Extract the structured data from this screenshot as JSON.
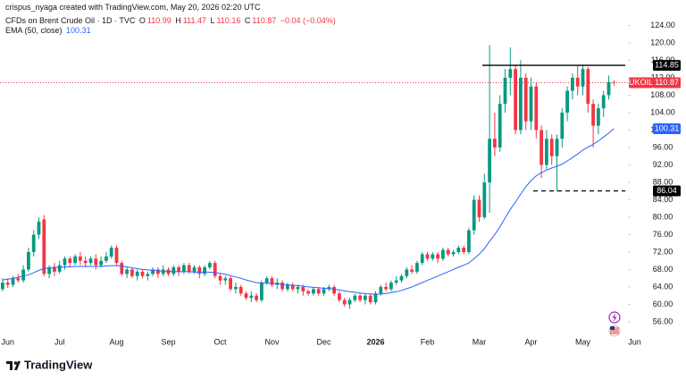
{
  "header": {
    "attribution": "crispus_nyaga created with TradingView.com, May 20, 2026 02:20 UTC",
    "ohlc_letters": [
      "O",
      "H",
      "L",
      "C"
    ],
    "change_label": "−0.04 (−0.04%)",
    "symbol_tag": "UKOIL"
  },
  "footer": {
    "brand": "TradingView"
  },
  "chart_data": {
    "type": "candlestick",
    "categories": [
      null,
      "Jun",
      null,
      null,
      null,
      null,
      null,
      null,
      null,
      null,
      null,
      "Jul",
      null,
      null,
      null,
      null,
      null,
      null,
      null,
      null,
      null,
      null,
      "Aug",
      null,
      null,
      null,
      null,
      null,
      null,
      null,
      null,
      null,
      "Sep",
      null,
      null,
      null,
      null,
      null,
      null,
      null,
      null,
      null,
      "Oct",
      null,
      null,
      null,
      null,
      null,
      null,
      null,
      null,
      null,
      "Nov",
      null,
      null,
      null,
      null,
      null,
      null,
      null,
      null,
      null,
      "Dec",
      null,
      null,
      null,
      null,
      null,
      null,
      null,
      null,
      null,
      "2026",
      null,
      null,
      null,
      null,
      null,
      null,
      null,
      null,
      null,
      "Feb",
      null,
      null,
      null,
      null,
      null,
      null,
      null,
      null,
      null,
      "Mar",
      null,
      null,
      null,
      null,
      null,
      null,
      null,
      null,
      null,
      "Apr",
      null,
      null,
      null,
      null,
      null,
      null,
      null,
      null,
      null,
      "May",
      null,
      null,
      null,
      null,
      null,
      null,
      null,
      null,
      null,
      "Jun"
    ],
    "ylim": [
      52.5,
      127.5
    ],
    "yticks": [
      {
        "value": 56,
        "label": "56.00"
      },
      {
        "value": 60,
        "label": "60.00"
      },
      {
        "value": 64,
        "label": "64.00"
      },
      {
        "value": 68,
        "label": "68.00"
      },
      {
        "value": 72,
        "label": "72.00"
      },
      {
        "value": 76,
        "label": "76.00"
      },
      {
        "value": 80,
        "label": "80.00"
      },
      {
        "value": 84,
        "label": "84.00"
      },
      {
        "value": 88,
        "label": "88.00"
      },
      {
        "value": 92,
        "label": "92.00"
      },
      {
        "value": 96,
        "label": "96.00"
      },
      {
        "value": 100,
        "label": "100.00"
      },
      {
        "value": 104,
        "label": "104.00"
      },
      {
        "value": 108,
        "label": "108.00"
      },
      {
        "value": 112,
        "label": "112.00"
      },
      {
        "value": 116,
        "label": "116.00"
      },
      {
        "value": 120,
        "label": "120.00"
      },
      {
        "value": 124,
        "label": "124.00"
      }
    ],
    "series": [
      {
        "name": "CFDs on Brent Crude Oil · 1D · TVC",
        "up_color": "#089981",
        "down_color": "#f23645",
        "open": [
          63.5,
          65,
          64.5,
          66,
          65.5,
          68,
          72,
          76,
          79.5,
          67,
          68.5,
          67.5,
          69,
          70.5,
          69.5,
          71,
          70,
          69.5,
          70.5,
          69,
          70,
          71,
          73,
          69.5,
          67,
          68,
          66.5,
          67.5,
          66.5,
          67,
          68,
          67,
          68,
          67,
          68.5,
          67.5,
          69,
          67.5,
          68.5,
          67,
          68.5,
          69.5,
          66.5,
          65.5,
          66,
          63.5,
          64,
          62.5,
          61.5,
          62,
          61,
          65,
          66,
          64.5,
          65,
          63.5,
          64.5,
          63.5,
          64,
          63,
          62.5,
          63.5,
          62.5,
          63.5,
          64,
          62.5,
          61,
          60,
          61,
          62,
          61,
          62,
          60.5,
          62.5,
          64,
          63.5,
          65,
          65.5,
          66.5,
          68,
          67.5,
          69.5,
          71.5,
          70.5,
          71.5,
          70.5,
          72.5,
          71.5,
          72,
          73,
          72,
          77,
          84,
          80,
          88,
          98,
          96,
          106,
          112,
          114,
          100,
          112,
          102,
          110,
          100,
          92,
          98,
          94,
          98,
          104,
          109,
          112,
          110,
          114,
          106,
          101,
          105,
          108,
          110.99,
          null,
          null,
          null,
          null
        ],
        "high": [
          66,
          66,
          66.5,
          67,
          69,
          73,
          77,
          80,
          80.5,
          69,
          69.5,
          70,
          71,
          71,
          71.5,
          72,
          71,
          71,
          71.5,
          71,
          72,
          73.5,
          73.5,
          70,
          68.5,
          68.5,
          68,
          68,
          67.5,
          68.5,
          68.5,
          69,
          68.5,
          69,
          69,
          69.5,
          69.5,
          69,
          69,
          69,
          70,
          70,
          67,
          66.5,
          66.5,
          65,
          64.5,
          63,
          63,
          62.5,
          65.5,
          66.5,
          66.5,
          66,
          65.5,
          65,
          65,
          64.5,
          64.5,
          63.5,
          64,
          64,
          64,
          64.5,
          64.5,
          63,
          61.5,
          61.5,
          62.5,
          62.5,
          62.5,
          62.5,
          63,
          64.5,
          65,
          65.5,
          66.5,
          67,
          68.5,
          69,
          70,
          72,
          72,
          72,
          72,
          73,
          73,
          72.5,
          73.5,
          73.5,
          77.5,
          85,
          85,
          90,
          119.5,
          104,
          108,
          114,
          119,
          115,
          116,
          113,
          112,
          111,
          101,
          100,
          99,
          99,
          105,
          110,
          113,
          114.9,
          115,
          114.5,
          107,
          106,
          109,
          112.5,
          111.47,
          null,
          null,
          null,
          null
        ],
        "low": [
          63,
          63.8,
          64,
          65,
          65,
          67.5,
          71,
          75,
          66.5,
          66,
          66.5,
          67,
          68,
          68.5,
          69,
          69,
          68.5,
          69,
          68,
          68.5,
          69.5,
          70.5,
          69,
          66.5,
          66,
          66,
          65.5,
          66,
          65.5,
          66.5,
          66,
          66.5,
          66.5,
          66.5,
          66.5,
          67,
          67,
          67,
          66,
          66.5,
          68,
          66,
          64.5,
          64.5,
          63,
          62.5,
          62,
          61,
          60.5,
          60.5,
          60.5,
          64.5,
          64,
          63.5,
          63,
          63,
          63,
          62.5,
          62,
          62,
          62,
          62,
          62,
          63,
          62,
          60.5,
          59.5,
          59,
          60.5,
          60.5,
          60,
          60,
          60,
          62,
          63,
          63,
          64.5,
          65,
          66,
          67,
          67,
          69,
          70,
          70,
          69.5,
          70,
          71,
          71,
          71.5,
          71.5,
          71.5,
          76,
          79,
          79.5,
          81,
          94,
          95,
          104,
          108,
          99,
          99,
          100,
          100,
          98,
          89,
          91,
          92,
          86,
          96,
          102,
          107,
          108,
          108,
          104,
          96,
          99,
          103,
          107,
          110.16,
          null,
          null,
          null,
          null
        ],
        "close": [
          65,
          64.5,
          66,
          65.5,
          68,
          72,
          76,
          79,
          67,
          68.5,
          67.5,
          69,
          70.5,
          69.5,
          71,
          70,
          69.5,
          70.5,
          69,
          70,
          71,
          73,
          69.5,
          67,
          68,
          66.5,
          67.5,
          66.5,
          67,
          68,
          67,
          68,
          67,
          68.5,
          67.5,
          69,
          67.5,
          68.5,
          67,
          68.5,
          69.5,
          66.5,
          65.5,
          66,
          63.5,
          64,
          62.5,
          61.5,
          62,
          61,
          65,
          66,
          64.5,
          65,
          63.5,
          64.5,
          63.5,
          64,
          63,
          62.5,
          63.5,
          62.5,
          63.5,
          64,
          62.5,
          61,
          60,
          61,
          62,
          61,
          62,
          60.5,
          62.5,
          64,
          63.5,
          65,
          65.5,
          66.5,
          68,
          67.5,
          69.5,
          71.5,
          70.5,
          71.5,
          70.5,
          72.5,
          71.5,
          72,
          73,
          72,
          77,
          84,
          80,
          88,
          98,
          96,
          106,
          112,
          114,
          100,
          112,
          102,
          110,
          100,
          92,
          98,
          94,
          98,
          104,
          109,
          112,
          110,
          114,
          106,
          101,
          105,
          108,
          111,
          110.87,
          null,
          null,
          null,
          null
        ]
      },
      {
        "name": "EMA (50, close)",
        "color": "#2962ff",
        "values": [
          65.6,
          65.8,
          66,
          66.2,
          66.5,
          66.8,
          67.3,
          67.8,
          68.2,
          68.4,
          68.5,
          68.5,
          68.6,
          68.6,
          68.7,
          68.7,
          68.7,
          68.7,
          68.7,
          68.7,
          68.8,
          68.9,
          68.9,
          68.8,
          68.6,
          68.4,
          68.2,
          68,
          67.9,
          67.8,
          67.7,
          67.6,
          67.6,
          67.5,
          67.5,
          67.5,
          67.5,
          67.4,
          67.4,
          67.4,
          67.4,
          67.3,
          67.1,
          66.9,
          66.6,
          66.3,
          66,
          65.6,
          65.3,
          65,
          64.9,
          64.9,
          64.8,
          64.7,
          64.6,
          64.5,
          64.4,
          64.3,
          64.2,
          64,
          63.9,
          63.8,
          63.7,
          63.6,
          63.5,
          63.3,
          63.1,
          62.9,
          62.8,
          62.6,
          62.5,
          62.4,
          62.3,
          62.4,
          62.5,
          62.7,
          62.9,
          63.2,
          63.6,
          64,
          64.5,
          65,
          65.5,
          66,
          66.5,
          67,
          67.5,
          68,
          68.5,
          69,
          69.5,
          70.5,
          71.5,
          72.8,
          74.5,
          76,
          77.8,
          79.8,
          81.8,
          83.5,
          85.3,
          87,
          88.4,
          89.5,
          90.2,
          90.8,
          91.3,
          91.7,
          92.2,
          92.9,
          93.7,
          94.5,
          95.4,
          96.1,
          96.7,
          97.5,
          98.4,
          99.3,
          100.31,
          null,
          null,
          null,
          null
        ]
      }
    ],
    "levels": [
      {
        "value": 114.85,
        "style": "solid",
        "color": "#000000"
      },
      {
        "value": 86.04,
        "style": "dashed",
        "color": "#000000"
      }
    ]
  }
}
